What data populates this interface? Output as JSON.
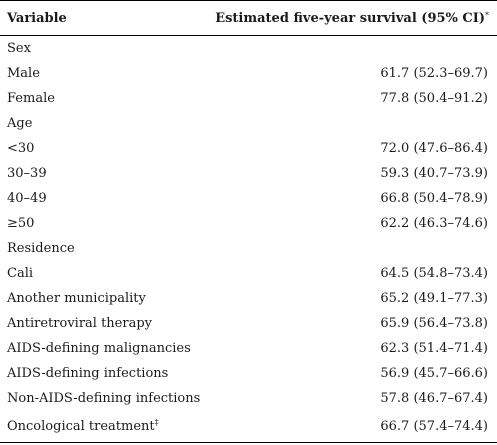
{
  "header": {
    "variable": "Variable",
    "estimate": "Estimated five-year survival (95% CI)",
    "estimate_mark": "*"
  },
  "rows": [
    {
      "label": "Sex",
      "value": ""
    },
    {
      "label": "Male",
      "value": "61.7 (52.3–69.7)"
    },
    {
      "label": "Female",
      "value": "77.8 (50.4–91.2)"
    },
    {
      "label": "Age",
      "value": ""
    },
    {
      "label": "<30",
      "value": "72.0 (47.6–86.4)"
    },
    {
      "label": "30–39",
      "value": "59.3 (40.7–73.9)"
    },
    {
      "label": "40–49",
      "value": "66.8 (50.4–78.9)"
    },
    {
      "label": "≥50",
      "value": "62.2 (46.3–74.6)"
    },
    {
      "label": "Residence",
      "value": ""
    },
    {
      "label": "Cali",
      "value": "64.5 (54.8–73.4)"
    },
    {
      "label": "Another municipality",
      "value": "65.2 (49.1–77.3)"
    },
    {
      "label": "Antiretroviral therapy",
      "value": "65.9 (56.4–73.8)"
    },
    {
      "label": "AIDS-defining malignancies",
      "value": "62.3 (51.4–71.4)"
    },
    {
      "label": "AIDS-defining infections",
      "value": "56.9 (45.7–66.6)"
    },
    {
      "label": "Non-AIDS-defining infections",
      "value": "57.8 (46.7–67.4)"
    },
    {
      "label": "Oncological treatment",
      "label_mark": "‡",
      "value": "66.7 (57.4–74.4)"
    }
  ]
}
